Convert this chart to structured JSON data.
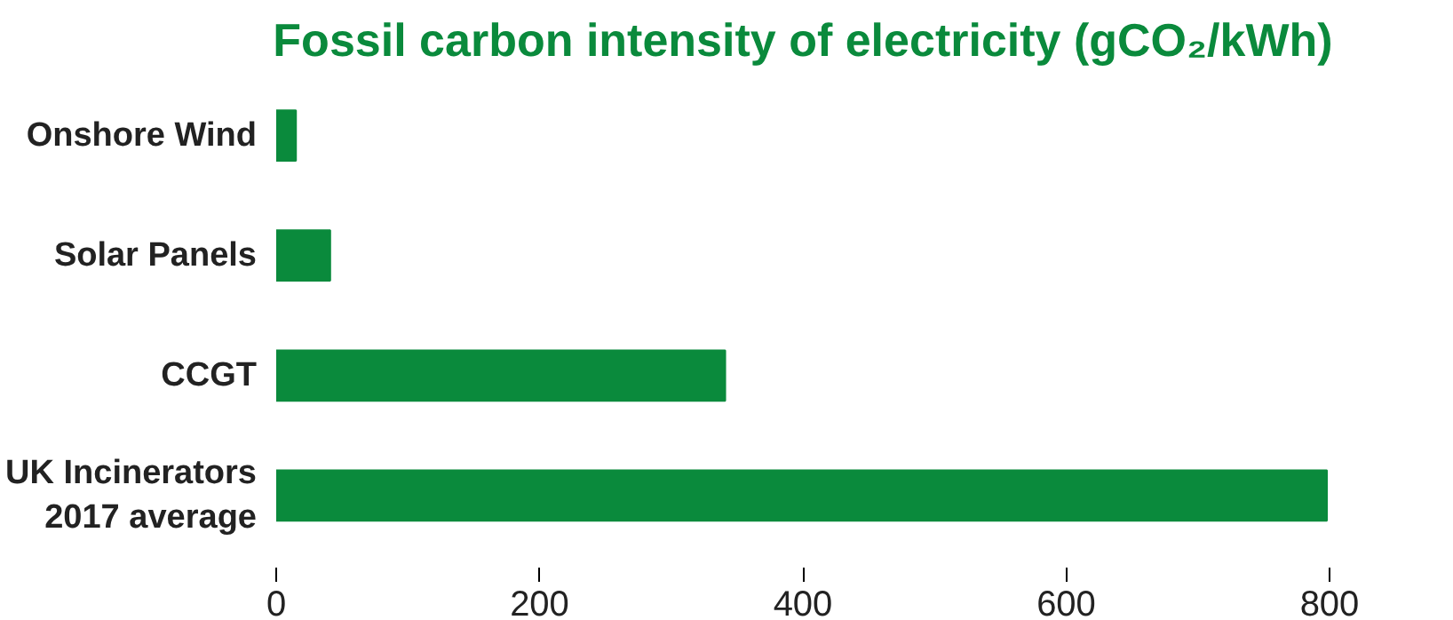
{
  "chart_data": {
    "type": "bar",
    "orientation": "horizontal",
    "title": "Fossil carbon intensity of electricity (gCO₂/kWh)",
    "categories": [
      "Onshore Wind",
      "Solar Panels",
      "CCGT",
      "UK Incinerators\n2017 average"
    ],
    "values": [
      15,
      41,
      341,
      798
    ],
    "color": "#0a8a3c",
    "xlim": [
      0,
      800
    ],
    "xticks": [
      0,
      200,
      400,
      600,
      800
    ],
    "grid": false
  }
}
